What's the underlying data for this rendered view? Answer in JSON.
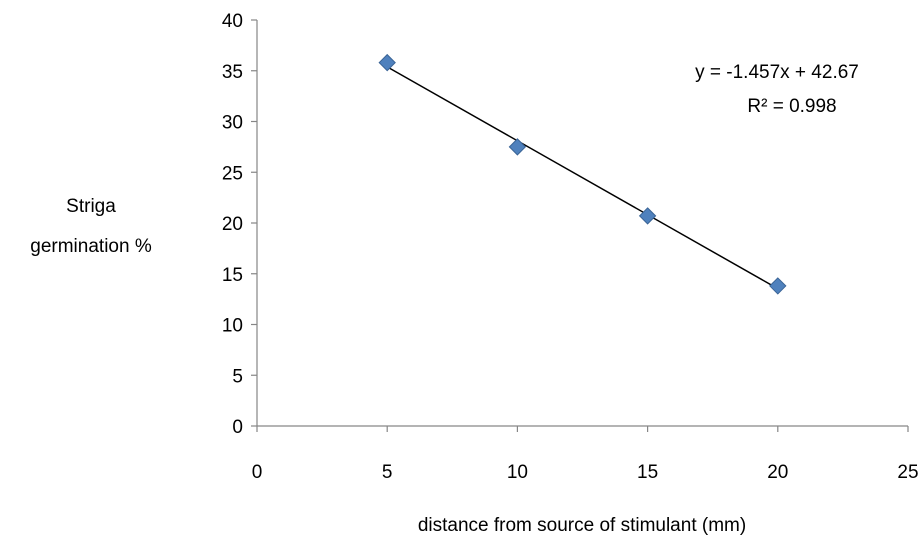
{
  "chart_data": {
    "type": "scatter",
    "title": "",
    "xlabel": "distance from source of stimulant (mm)",
    "ylabel_lines": [
      "Striga",
      "germination %"
    ],
    "xlim": [
      0,
      25
    ],
    "ylim": [
      0,
      40
    ],
    "x_ticks": [
      0,
      5,
      10,
      15,
      20,
      25
    ],
    "y_ticks": [
      0,
      5,
      10,
      15,
      20,
      25,
      30,
      35,
      40
    ],
    "x_tick_labels": [
      "0",
      "5",
      "10",
      "15",
      "20",
      "25"
    ],
    "y_tick_labels": [
      "0",
      "5",
      "10",
      "15",
      "20",
      "25",
      "30",
      "35",
      "40"
    ],
    "grid": false,
    "legend": "none",
    "series": [
      {
        "x": [
          5,
          10,
          15,
          20
        ],
        "y": [
          35.8,
          27.5,
          20.7,
          13.8
        ],
        "marker": "diamond",
        "color": "#4F81BD"
      }
    ],
    "trendline": {
      "slope": -1.457,
      "intercept": 42.67,
      "x_range": [
        5,
        20
      ],
      "color": "#000000"
    },
    "annotations": {
      "equation": "y = -1.457x + 42.67",
      "r_squared": "R² = 0.998"
    }
  }
}
